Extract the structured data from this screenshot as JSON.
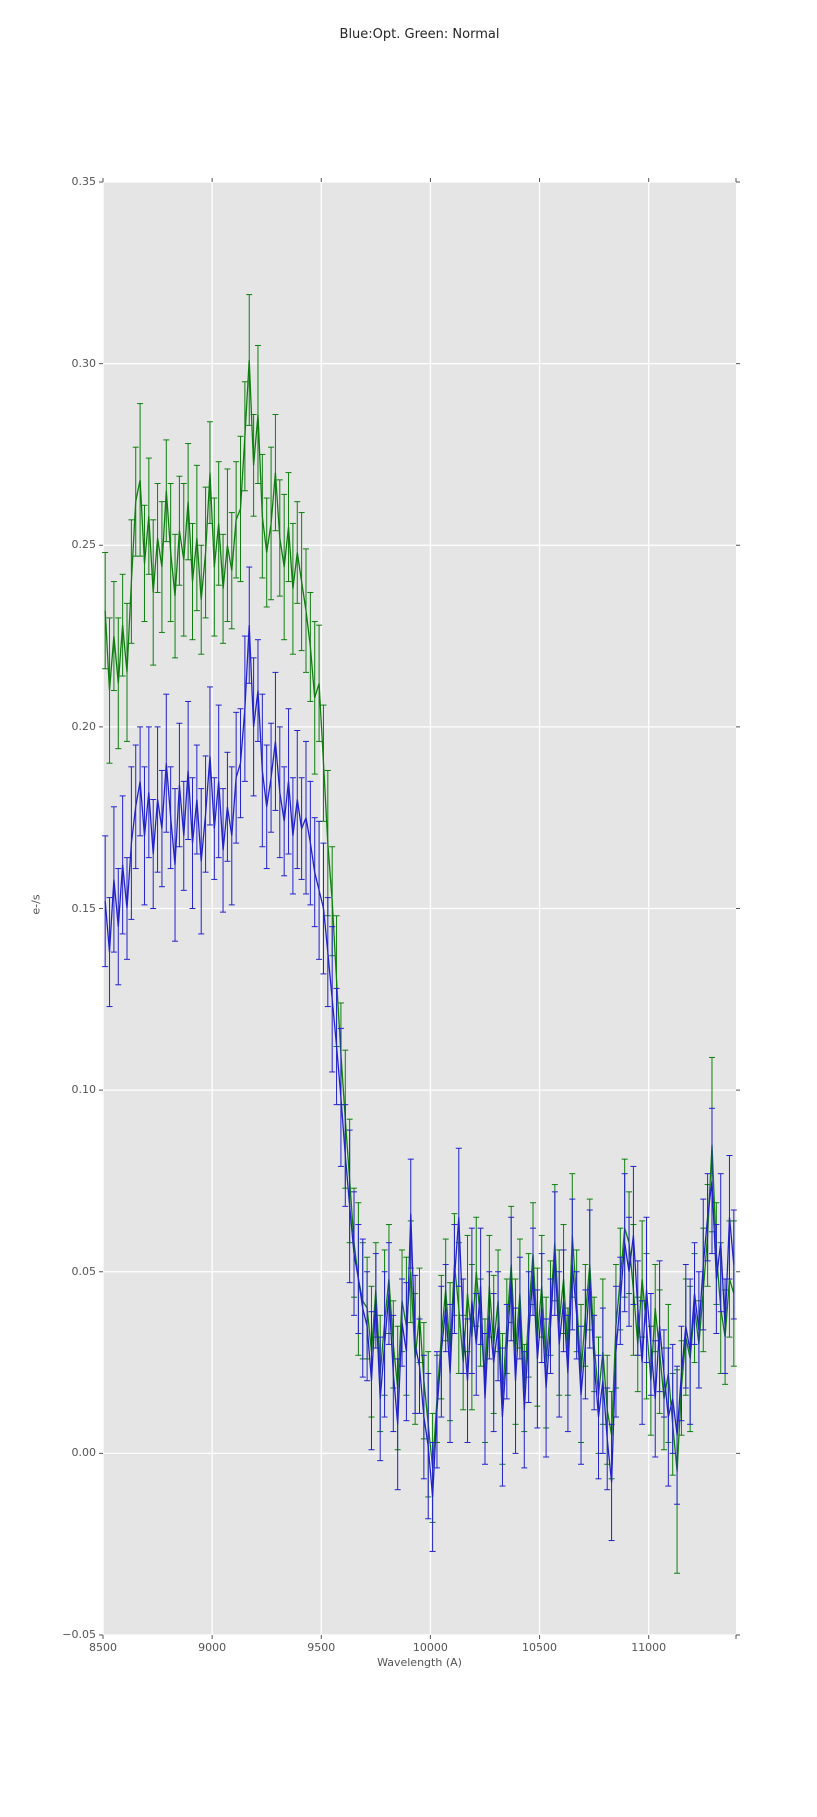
{
  "figure": {
    "title": "Blue:Opt. Green: Normal"
  },
  "axes": {
    "xlabel": "Wavelength (A)",
    "ylabel": "e-/s",
    "x_min": 8500,
    "x_max": 11400,
    "y_min": -0.05,
    "y_max": 0.35,
    "x_tick_values": [
      8500,
      9000,
      9500,
      10000,
      10500,
      11000
    ],
    "x_tick_labels": [
      "8500",
      "9000",
      "9500",
      "10000",
      "10500",
      "11000"
    ],
    "x_edge_ticks": [
      11400
    ],
    "y_tick_values": [
      0.35,
      0.3,
      0.25,
      0.2,
      0.15,
      0.1,
      0.05,
      0.0,
      -0.05
    ],
    "y_tick_labels": [
      "0.35",
      "0.30",
      "0.25",
      "0.20",
      "0.15",
      "0.10",
      "0.05",
      "0.00",
      "−0.05"
    ],
    "background_color": "#e5e5e5",
    "grid_color": "#ffffff",
    "tick_color": "#555555"
  },
  "chart_data": {
    "type": "line",
    "title": "Blue:Opt. Green: Normal",
    "xlabel": "Wavelength (A)",
    "ylabel": "e-/s",
    "xlim": [
      8500,
      11400
    ],
    "ylim": [
      -0.05,
      0.35
    ],
    "grid": true,
    "legend": "none",
    "error_bars": true,
    "x": [
      8510,
      8530,
      8550,
      8570,
      8590,
      8610,
      8630,
      8650,
      8670,
      8690,
      8710,
      8730,
      8750,
      8770,
      8790,
      8810,
      8830,
      8850,
      8870,
      8890,
      8910,
      8930,
      8950,
      8970,
      8990,
      9010,
      9030,
      9050,
      9070,
      9090,
      9110,
      9130,
      9150,
      9170,
      9190,
      9210,
      9230,
      9250,
      9270,
      9290,
      9310,
      9330,
      9350,
      9370,
      9390,
      9410,
      9430,
      9450,
      9470,
      9490,
      9510,
      9530,
      9550,
      9570,
      9590,
      9610,
      9630,
      9650,
      9670,
      9690,
      9710,
      9730,
      9750,
      9770,
      9790,
      9810,
      9830,
      9850,
      9870,
      9890,
      9910,
      9930,
      9950,
      9970,
      9990,
      10010,
      10030,
      10050,
      10070,
      10090,
      10110,
      10130,
      10150,
      10170,
      10190,
      10210,
      10230,
      10250,
      10270,
      10290,
      10310,
      10330,
      10350,
      10370,
      10390,
      10410,
      10430,
      10450,
      10470,
      10490,
      10510,
      10530,
      10550,
      10570,
      10590,
      10610,
      10630,
      10650,
      10670,
      10690,
      10710,
      10730,
      10750,
      10770,
      10790,
      10810,
      10830,
      10850,
      10870,
      10890,
      10910,
      10930,
      10950,
      10970,
      10990,
      11010,
      11030,
      11050,
      11070,
      11090,
      11110,
      11130,
      11150,
      11170,
      11190,
      11210,
      11230,
      11250,
      11270,
      11290,
      11310,
      11330,
      11350,
      11370,
      11390
    ],
    "series": [
      {
        "name": "Normal",
        "color": "#0e7f0e",
        "y": [
          0.232,
          0.21,
          0.225,
          0.212,
          0.228,
          0.215,
          0.24,
          0.262,
          0.268,
          0.245,
          0.258,
          0.237,
          0.252,
          0.244,
          0.265,
          0.248,
          0.236,
          0.254,
          0.246,
          0.262,
          0.24,
          0.252,
          0.235,
          0.248,
          0.27,
          0.244,
          0.256,
          0.238,
          0.25,
          0.243,
          0.257,
          0.26,
          0.28,
          0.301,
          0.272,
          0.286,
          0.258,
          0.248,
          0.256,
          0.27,
          0.252,
          0.244,
          0.255,
          0.238,
          0.248,
          0.24,
          0.232,
          0.222,
          0.208,
          0.212,
          0.19,
          0.168,
          0.152,
          0.13,
          0.11,
          0.092,
          0.075,
          0.058,
          0.048,
          0.042,
          0.04,
          0.028,
          0.045,
          0.022,
          0.036,
          0.048,
          0.03,
          0.018,
          0.042,
          0.035,
          0.05,
          0.026,
          0.038,
          0.02,
          0.008,
          -0.004,
          0.015,
          0.032,
          0.045,
          0.028,
          0.052,
          0.04,
          0.025,
          0.044,
          0.032,
          0.05,
          0.036,
          0.02,
          0.046,
          0.03,
          0.042,
          0.015,
          0.035,
          0.052,
          0.028,
          0.044,
          0.018,
          0.038,
          0.055,
          0.032,
          0.046,
          0.025,
          0.04,
          0.058,
          0.036,
          0.048,
          0.028,
          0.06,
          0.042,
          0.022,
          0.038,
          0.052,
          0.03,
          0.016,
          0.028,
          0.012,
          0.005,
          0.035,
          0.048,
          0.062,
          0.058,
          0.045,
          0.03,
          0.048,
          0.035,
          0.02,
          0.04,
          0.028,
          0.015,
          0.022,
          0.008,
          -0.005,
          0.018,
          0.032,
          0.026,
          0.04,
          0.03,
          0.045,
          0.06,
          0.085,
          0.055,
          0.04,
          0.032,
          0.048,
          0.044
        ],
        "yerr": [
          0.016,
          0.02,
          0.015,
          0.018,
          0.014,
          0.019,
          0.017,
          0.015,
          0.021,
          0.016,
          0.016,
          0.02,
          0.015,
          0.018,
          0.014,
          0.019,
          0.017,
          0.015,
          0.021,
          0.016,
          0.016,
          0.02,
          0.015,
          0.018,
          0.014,
          0.019,
          0.017,
          0.015,
          0.021,
          0.016,
          0.016,
          0.02,
          0.015,
          0.018,
          0.014,
          0.019,
          0.017,
          0.015,
          0.021,
          0.016,
          0.016,
          0.02,
          0.015,
          0.018,
          0.014,
          0.019,
          0.017,
          0.015,
          0.021,
          0.016,
          0.016,
          0.02,
          0.015,
          0.018,
          0.014,
          0.019,
          0.017,
          0.015,
          0.021,
          0.016,
          0.014,
          0.018,
          0.013,
          0.016,
          0.02,
          0.015,
          0.012,
          0.017,
          0.014,
          0.019,
          0.014,
          0.018,
          0.013,
          0.016,
          0.02,
          0.015,
          0.012,
          0.017,
          0.014,
          0.019,
          0.014,
          0.018,
          0.013,
          0.016,
          0.02,
          0.015,
          0.012,
          0.017,
          0.014,
          0.019,
          0.014,
          0.018,
          0.013,
          0.016,
          0.02,
          0.015,
          0.012,
          0.017,
          0.014,
          0.019,
          0.014,
          0.018,
          0.013,
          0.016,
          0.02,
          0.015,
          0.012,
          0.017,
          0.014,
          0.019,
          0.014,
          0.018,
          0.013,
          0.016,
          0.02,
          0.015,
          0.012,
          0.017,
          0.014,
          0.019,
          0.014,
          0.018,
          0.013,
          0.016,
          0.02,
          0.015,
          0.012,
          0.017,
          0.014,
          0.019,
          0.014,
          0.028,
          0.013,
          0.016,
          0.02,
          0.015,
          0.012,
          0.017,
          0.014,
          0.024,
          0.014,
          0.018,
          0.013,
          0.016,
          0.02
        ]
      },
      {
        "name": "Opt",
        "color": "#2222cc",
        "y": [
          0.152,
          0.138,
          0.158,
          0.145,
          0.162,
          0.15,
          0.168,
          0.178,
          0.185,
          0.17,
          0.182,
          0.165,
          0.18,
          0.172,
          0.19,
          0.175,
          0.162,
          0.184,
          0.17,
          0.188,
          0.168,
          0.18,
          0.163,
          0.176,
          0.192,
          0.172,
          0.185,
          0.166,
          0.178,
          0.17,
          0.186,
          0.19,
          0.205,
          0.228,
          0.2,
          0.21,
          0.188,
          0.178,
          0.186,
          0.196,
          0.182,
          0.174,
          0.185,
          0.17,
          0.18,
          0.172,
          0.175,
          0.168,
          0.16,
          0.155,
          0.15,
          0.138,
          0.125,
          0.112,
          0.098,
          0.082,
          0.068,
          0.055,
          0.048,
          0.04,
          0.035,
          0.02,
          0.042,
          0.015,
          0.03,
          0.044,
          0.022,
          0.008,
          0.036,
          0.028,
          0.066,
          0.03,
          0.024,
          0.01,
          0.002,
          -0.012,
          0.012,
          0.028,
          0.04,
          0.022,
          0.048,
          0.065,
          0.035,
          0.02,
          0.042,
          0.03,
          0.046,
          0.015,
          0.038,
          0.025,
          0.035,
          0.01,
          0.028,
          0.048,
          0.02,
          0.04,
          0.012,
          0.032,
          0.05,
          0.026,
          0.04,
          0.018,
          0.035,
          0.055,
          0.03,
          0.042,
          0.022,
          0.052,
          0.038,
          0.016,
          0.03,
          0.048,
          0.025,
          0.01,
          0.02,
          0.004,
          -0.008,
          0.028,
          0.042,
          0.058,
          0.05,
          0.06,
          0.04,
          0.025,
          0.045,
          0.03,
          0.015,
          0.035,
          0.022,
          0.01,
          0.015,
          0.005,
          0.022,
          0.035,
          0.028,
          0.044,
          0.034,
          0.052,
          0.065,
          0.075,
          0.048,
          0.058,
          0.035,
          0.065,
          0.052
        ],
        "yerr": [
          0.018,
          0.015,
          0.02,
          0.016,
          0.019,
          0.014,
          0.021,
          0.017,
          0.015,
          0.019,
          0.018,
          0.015,
          0.02,
          0.016,
          0.019,
          0.014,
          0.021,
          0.017,
          0.015,
          0.019,
          0.018,
          0.015,
          0.02,
          0.016,
          0.019,
          0.014,
          0.021,
          0.017,
          0.015,
          0.019,
          0.018,
          0.015,
          0.02,
          0.016,
          0.019,
          0.014,
          0.021,
          0.017,
          0.015,
          0.019,
          0.018,
          0.015,
          0.02,
          0.016,
          0.019,
          0.014,
          0.021,
          0.017,
          0.015,
          0.019,
          0.018,
          0.015,
          0.02,
          0.016,
          0.019,
          0.014,
          0.021,
          0.017,
          0.015,
          0.019,
          0.015,
          0.019,
          0.013,
          0.017,
          0.02,
          0.014,
          0.016,
          0.018,
          0.012,
          0.019,
          0.015,
          0.019,
          0.013,
          0.017,
          0.02,
          0.015,
          0.016,
          0.018,
          0.012,
          0.019,
          0.015,
          0.019,
          0.013,
          0.017,
          0.02,
          0.014,
          0.016,
          0.018,
          0.012,
          0.019,
          0.015,
          0.019,
          0.013,
          0.017,
          0.02,
          0.014,
          0.016,
          0.018,
          0.012,
          0.019,
          0.015,
          0.019,
          0.013,
          0.017,
          0.02,
          0.014,
          0.016,
          0.018,
          0.012,
          0.019,
          0.015,
          0.019,
          0.013,
          0.017,
          0.02,
          0.014,
          0.016,
          0.018,
          0.012,
          0.019,
          0.015,
          0.019,
          0.013,
          0.017,
          0.02,
          0.014,
          0.016,
          0.018,
          0.012,
          0.019,
          0.015,
          0.019,
          0.013,
          0.017,
          0.02,
          0.014,
          0.016,
          0.018,
          0.012,
          0.02,
          0.015,
          0.019,
          0.013,
          0.017,
          0.015
        ]
      }
    ]
  }
}
